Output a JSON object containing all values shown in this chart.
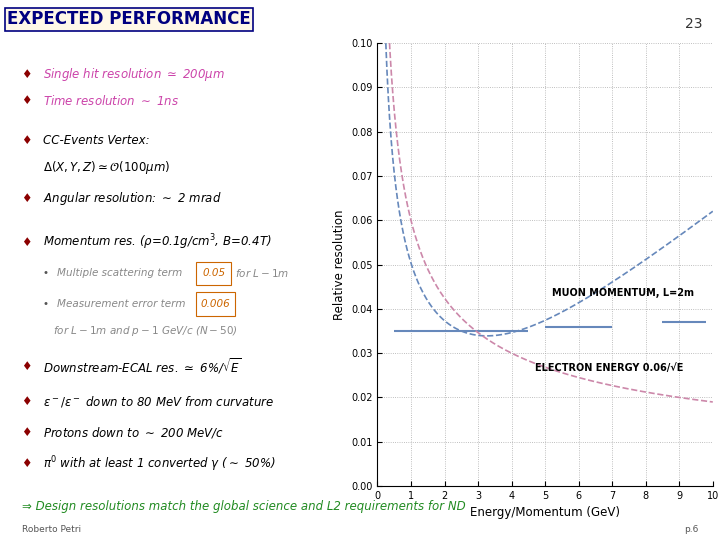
{
  "title": "EXPECTED PERFORMANCE",
  "title_color": "#000080",
  "title_bg": "#fff8e8",
  "slide_number": "23",
  "page_label": "Roberto Petri",
  "page_number": "p.6",
  "bg_color": "#ffffff",
  "bullet_color": "#8b0000",
  "text_color": "#000000",
  "pink_text_color": "#cc44aa",
  "green_text_color": "#228b22",
  "conclusion": "⇒ Design resolutions match the global science and L2 requirements for ND",
  "conclusion_color": "#228b22",
  "graph_xlim": [
    0,
    10
  ],
  "graph_ylim": [
    0,
    0.1
  ],
  "graph_xticks": [
    0,
    1,
    2,
    3,
    4,
    5,
    6,
    7,
    8,
    9,
    10
  ],
  "graph_yticks": [
    0,
    0.01,
    0.02,
    0.03,
    0.04,
    0.05,
    0.06,
    0.07,
    0.08,
    0.09,
    0.1
  ],
  "graph_xlabel": "Energy/Momentum (GeV)",
  "graph_ylabel": "Relative resolution",
  "muon_label": "MUON MOMENTUM, L=2m",
  "electron_label": "ELECTRON ENERGY 0.06/√E",
  "muon_color": "#6688bb",
  "electron_color": "#cc88aa",
  "electron_06": 0.06,
  "ms_term": 0.05,
  "meas_term": 0.006
}
